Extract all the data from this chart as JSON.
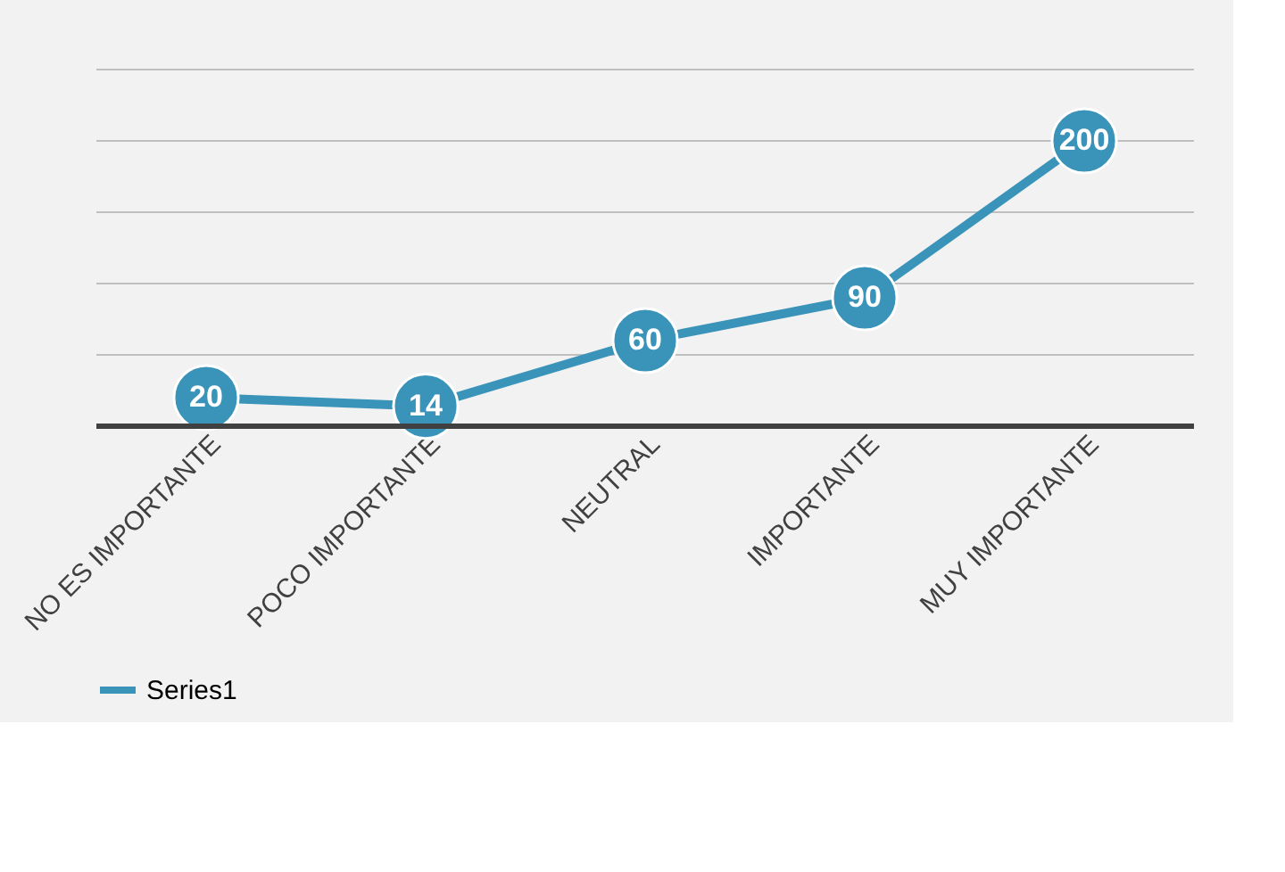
{
  "chart_data": {
    "type": "line",
    "categories": [
      "NO ES IMPORTANTE",
      "POCO IMPORTANTE",
      "NEUTRAL",
      "IMPORTANTE",
      "MUY IMPORTANTE"
    ],
    "series": [
      {
        "name": "Series1",
        "color": "#3a93b9",
        "values": [
          20,
          14,
          60,
          90,
          200
        ]
      }
    ],
    "ylim": [
      0,
      250
    ],
    "yticks": [
      {
        "value": 0,
        "label": null
      },
      {
        "value": 50,
        "label": null
      },
      {
        "value": 100,
        "label": null
      },
      {
        "value": 150,
        "label": null
      },
      {
        "value": 200,
        "label": null
      },
      {
        "value": 250,
        "label": null
      }
    ],
    "tick_labels": "x",
    "grid": "y",
    "legend": "bottom",
    "marker": "circle",
    "line_style": "solid",
    "data_labels": true
  }
}
